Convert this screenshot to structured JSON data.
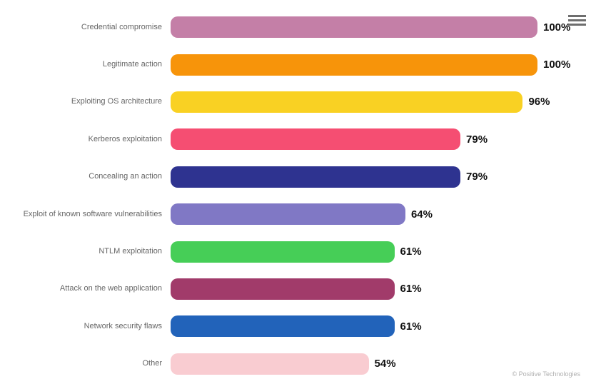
{
  "chart_data": {
    "type": "bar",
    "orientation": "horizontal",
    "title": "",
    "xlabel": "",
    "ylabel": "",
    "xlim": [
      0,
      100
    ],
    "grid": false,
    "legend": false,
    "unit": "%",
    "categories": [
      "Credential compromise",
      "Legitimate action",
      "Exploiting OS architecture",
      "Kerberos exploitation",
      "Concealing an action",
      "Exploit of known software vulnerabilities",
      "NTLM exploitation",
      "Attack on the web application",
      "Network security flaws",
      "Other"
    ],
    "values": [
      100,
      100,
      96,
      79,
      79,
      64,
      61,
      61,
      61,
      54
    ],
    "value_labels": [
      "100%",
      "100%",
      "96%",
      "79%",
      "79%",
      "64%",
      "61%",
      "61%",
      "61%",
      "54%"
    ],
    "colors": [
      "#c47fa7",
      "#f7940a",
      "#f9d123",
      "#f54e72",
      "#2e3390",
      "#8078c5",
      "#46ce57",
      "#a13b6a",
      "#2263ba",
      "#f9ccd1"
    ],
    "label_color": "#666666",
    "value_label_color": "#111111"
  },
  "menu": {
    "icon": "hamburger-menu-icon",
    "icon_color": "#6e6e6e"
  },
  "credit": {
    "text": "© Positive Technologies",
    "color": "#b0b0b0"
  }
}
